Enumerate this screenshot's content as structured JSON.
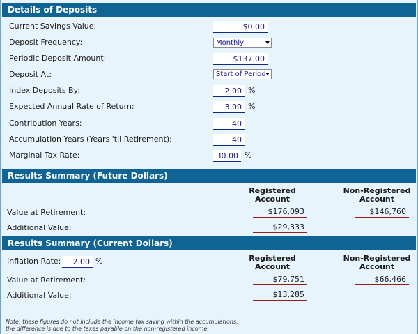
{
  "deposits": {
    "header": "Details of Deposits",
    "current_savings_label": "Current Savings Value:",
    "current_savings_value": "$0.00",
    "deposit_frequency_label": "Deposit Frequency:",
    "deposit_frequency_value": "Monthly",
    "periodic_deposit_label": "Periodic Deposit Amount:",
    "periodic_deposit_value": "$137.00",
    "deposit_at_label": "Deposit At:",
    "deposit_at_value": "Start of Period",
    "index_label": "Index Deposits By:",
    "index_value": "2.00",
    "expected_return_label": "Expected Annual Rate of Return:",
    "expected_return_value": "3.00",
    "contribution_years_label": "Contribution Years:",
    "contribution_years_value": "40",
    "accumulation_years_label": "Accumulation Years (Years 'til Retirement):",
    "accumulation_years_value": "40",
    "marginal_tax_label": "Marginal Tax Rate:",
    "marginal_tax_value": "30.00",
    "percent": "%"
  },
  "future": {
    "header": "Results Summary (Future Dollars)",
    "registered_head_1": "Registered",
    "registered_head_2": "Account",
    "nonregistered_head_1": "Non-Registered",
    "nonregistered_head_2": "Account",
    "value_label": "Value at Retirement:",
    "value_registered": "$176,093",
    "value_nonregistered": "$146,760",
    "additional_label": "Additional Value:",
    "additional_registered": "$29,333"
  },
  "current": {
    "header": "Results Summary (Current Dollars)",
    "inflation_label": "Inflation Rate:",
    "inflation_value": "2.00",
    "percent": "%",
    "registered_head_1": "Registered",
    "registered_head_2": "Account",
    "nonregistered_head_1": "Non-Registered",
    "nonregistered_head_2": "Account",
    "value_label": "Value at Retirement:",
    "value_registered": "$79,751",
    "value_nonregistered": "$66,466",
    "additional_label": "Additional Value:",
    "additional_registered": "$13,285"
  },
  "note": {
    "line1": "Note: these figures do not include the income tax saving within the accumulations,",
    "line2": "the difference is due to the taxes payable on the non-registered income."
  }
}
